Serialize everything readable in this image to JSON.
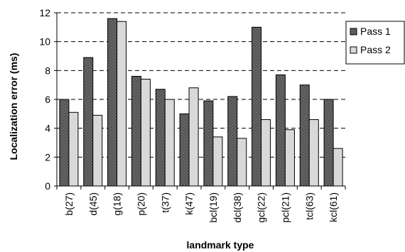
{
  "chart_data": {
    "type": "bar",
    "categories": [
      "b(27)",
      "d(45)",
      "g(18)",
      "p(20)",
      "t(37)",
      "k(47)",
      "bcl(19)",
      "dcl(38)",
      "gcl(22)",
      "pcl(21)",
      "tcl(63)",
      "kcl(61)"
    ],
    "series": [
      {
        "name": "Pass 1",
        "values": [
          6.0,
          8.9,
          11.6,
          7.6,
          6.7,
          5.0,
          5.9,
          6.2,
          11.0,
          7.7,
          7.0,
          6.0
        ],
        "color": "#555555",
        "pattern": "hatched-dark"
      },
      {
        "name": "Pass 2",
        "values": [
          5.1,
          4.9,
          11.4,
          7.4,
          6.0,
          6.8,
          3.4,
          3.3,
          4.6,
          3.9,
          4.6,
          2.6
        ],
        "color": "#d9d9d9",
        "pattern": "light-gray"
      }
    ],
    "xlabel": "landmark type",
    "ylabel": "Localization error (ms)",
    "ylim": [
      0,
      12
    ],
    "yticks": [
      "0",
      "2",
      "4",
      "6",
      "8",
      "10",
      "12"
    ],
    "grid": "horizontal dashed",
    "legend_position": "right"
  }
}
